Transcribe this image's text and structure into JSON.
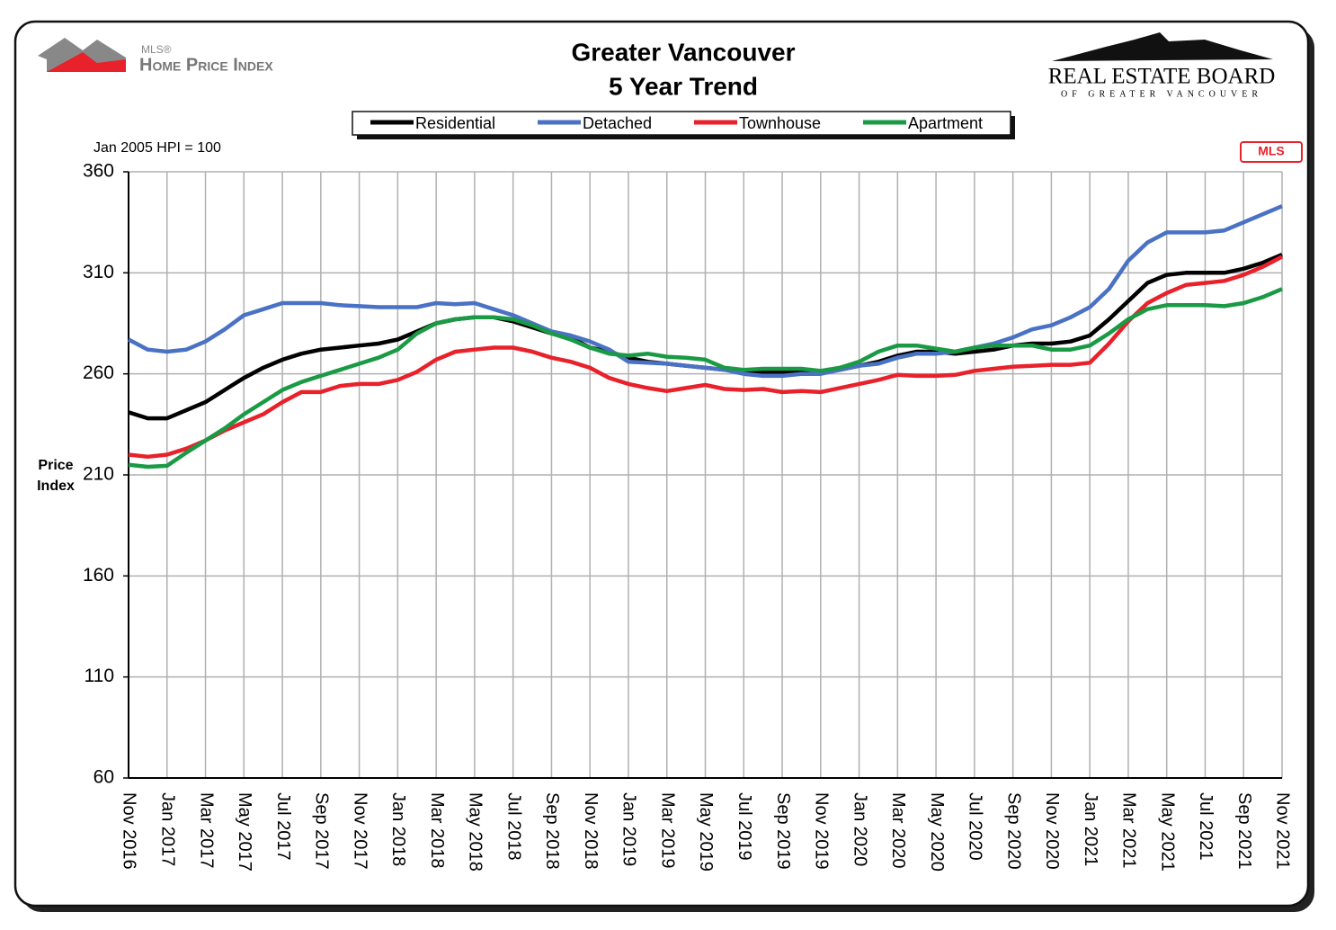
{
  "chart_data": {
    "type": "line",
    "title": "Greater Vancouver",
    "subtitle": "5 Year Trend",
    "note": "Jan 2005 HPI = 100",
    "y_label": [
      "Price",
      "Index"
    ],
    "logos": {
      "mls_small": "MLS®",
      "hpi": "Home Price Index",
      "board": "REAL ESTATE BOARD",
      "board_sub": "OF GREATER VANCOUVER",
      "mls_badge": "MLS"
    },
    "categories": [
      "Nov 2016",
      null,
      "Jan 2017",
      null,
      "Mar 2017",
      null,
      "May 2017",
      null,
      "Jul 2017",
      null,
      "Sep 2017",
      null,
      "Nov 2017",
      null,
      "Jan 2018",
      null,
      "Mar 2018",
      null,
      "May 2018",
      null,
      "Jul 2018",
      null,
      "Sep 2018",
      null,
      "Nov 2018",
      null,
      "Jan 2019",
      null,
      "Mar 2019",
      null,
      "May 2019",
      null,
      "Jul 2019",
      null,
      "Sep 2019",
      null,
      "Nov 2019",
      null,
      "Jan 2020",
      null,
      "Mar 2020",
      null,
      "May 2020",
      null,
      "Jul 2020",
      null,
      "Sep 2020",
      null,
      "Nov 2020",
      null,
      "Jan 2021",
      null,
      "Mar 2021",
      null,
      "May 2021",
      null,
      "Jul 2021",
      null,
      "Sep 2021",
      null,
      "Nov 2021"
    ],
    "series": [
      {
        "name": "Residential",
        "color": "#000000",
        "values": [
          241,
          238,
          238,
          242,
          246,
          252,
          258,
          263,
          267,
          270,
          272,
          273,
          274,
          275,
          277,
          281,
          285,
          287,
          288,
          288,
          286,
          283,
          280,
          278,
          273,
          271,
          268,
          266,
          265,
          264,
          263,
          262,
          261,
          261,
          261,
          261,
          261,
          262,
          264,
          266,
          269,
          271,
          271,
          270,
          271,
          272,
          274,
          275,
          275,
          276,
          279,
          287,
          296,
          305,
          309,
          310,
          310,
          310,
          312,
          315,
          319
        ]
      },
      {
        "name": "Detached",
        "color": "#4a72c4",
        "values": [
          277,
          272,
          271,
          272,
          276,
          282,
          289,
          292,
          295,
          295,
          295,
          294,
          293.5,
          293,
          293,
          293,
          295,
          294.5,
          295,
          292,
          289,
          285,
          281,
          279,
          276,
          272,
          266,
          265.5,
          265,
          264,
          263,
          262,
          260,
          259,
          259,
          260,
          260,
          262,
          264,
          265,
          268,
          270,
          270,
          271,
          273,
          275,
          278,
          282,
          284,
          288,
          293,
          302,
          316,
          325,
          330,
          330,
          330,
          331,
          335,
          339,
          343
        ]
      },
      {
        "name": "Townhouse",
        "color": "#e8212b",
        "values": [
          220,
          219,
          220,
          223,
          227,
          232,
          236,
          240,
          246,
          251,
          251,
          254,
          255,
          255,
          257,
          261,
          267,
          271,
          272,
          273,
          273,
          271,
          268,
          266,
          263,
          258,
          255,
          253,
          251.5,
          253,
          254.5,
          252.5,
          252,
          252.5,
          251,
          251.5,
          251,
          253,
          255,
          257,
          259.5,
          259,
          259,
          259.5,
          261.5,
          262.5,
          263.5,
          264,
          264.5,
          264.5,
          265.5,
          275,
          286,
          295,
          300,
          304,
          305,
          306,
          309,
          313,
          318
        ]
      },
      {
        "name": "Apartment",
        "color": "#1a9a45",
        "values": [
          215,
          214,
          214.5,
          221,
          227,
          233,
          240,
          246,
          252,
          256,
          259,
          262,
          265,
          268,
          272,
          280,
          285,
          287,
          288,
          288,
          287,
          284,
          280,
          277,
          273,
          270,
          269,
          270,
          268.5,
          268,
          267,
          263,
          262,
          262.5,
          262.5,
          262.5,
          261.5,
          263,
          266,
          271,
          274,
          274,
          272.5,
          271,
          273,
          274,
          274,
          274,
          272,
          272,
          274,
          280,
          287,
          292,
          294,
          294,
          294,
          293.5,
          295,
          298,
          302
        ]
      }
    ],
    "ylim": [
      60,
      360
    ],
    "yticks": [
      60,
      110,
      160,
      210,
      260,
      310,
      360
    ],
    "grid": true,
    "legend": "top"
  }
}
